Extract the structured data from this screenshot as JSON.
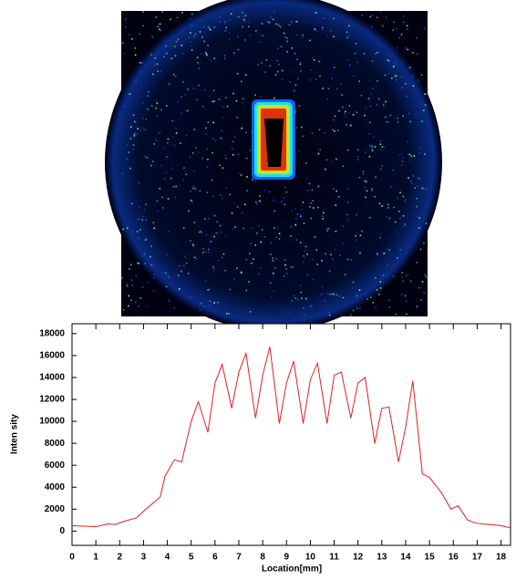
{
  "chart_data": {
    "type": "line",
    "xlabel": "Location[mm]",
    "ylabel": "Inten sity",
    "color": "#e02020",
    "x": [
      0,
      0.5,
      1.0,
      1.5,
      1.8,
      2.2,
      2.7,
      3.1,
      3.7,
      3.9,
      4.3,
      4.6,
      5.0,
      5.3,
      5.7,
      6.0,
      6.3,
      6.7,
      7.0,
      7.3,
      7.7,
      8.0,
      8.3,
      8.7,
      9.0,
      9.3,
      9.7,
      10.0,
      10.3,
      10.7,
      11.0,
      11.3,
      11.7,
      12.0,
      12.3,
      12.7,
      13.0,
      13.3,
      13.7,
      14.0,
      14.3,
      14.7,
      15.0,
      15.5,
      15.9,
      16.2,
      16.6,
      17.0,
      17.5,
      18.0,
      18.4
    ],
    "values": [
      500,
      450,
      400,
      650,
      600,
      900,
      1200,
      2000,
      3100,
      5000,
      6500,
      6300,
      10000,
      11800,
      9000,
      13500,
      15200,
      11200,
      14500,
      16200,
      10300,
      14200,
      16800,
      9800,
      13500,
      15500,
      9800,
      13800,
      15300,
      9800,
      14200,
      14500,
      10300,
      13500,
      14000,
      8000,
      11200,
      11300,
      6300,
      9500,
      13700,
      5200,
      4900,
      3500,
      2000,
      2300,
      1000,
      700,
      600,
      500,
      300
    ],
    "xlim": [
      0,
      18.4
    ],
    "xticks": [
      0,
      1,
      2,
      3,
      4,
      5,
      6,
      7,
      8,
      9,
      10,
      11,
      12,
      13,
      14,
      15,
      16,
      17,
      18
    ],
    "ylim": [
      -1300,
      18900
    ],
    "yticks": [
      0,
      2000,
      4000,
      6000,
      8000,
      10000,
      12000,
      14000,
      16000,
      18000
    ]
  }
}
